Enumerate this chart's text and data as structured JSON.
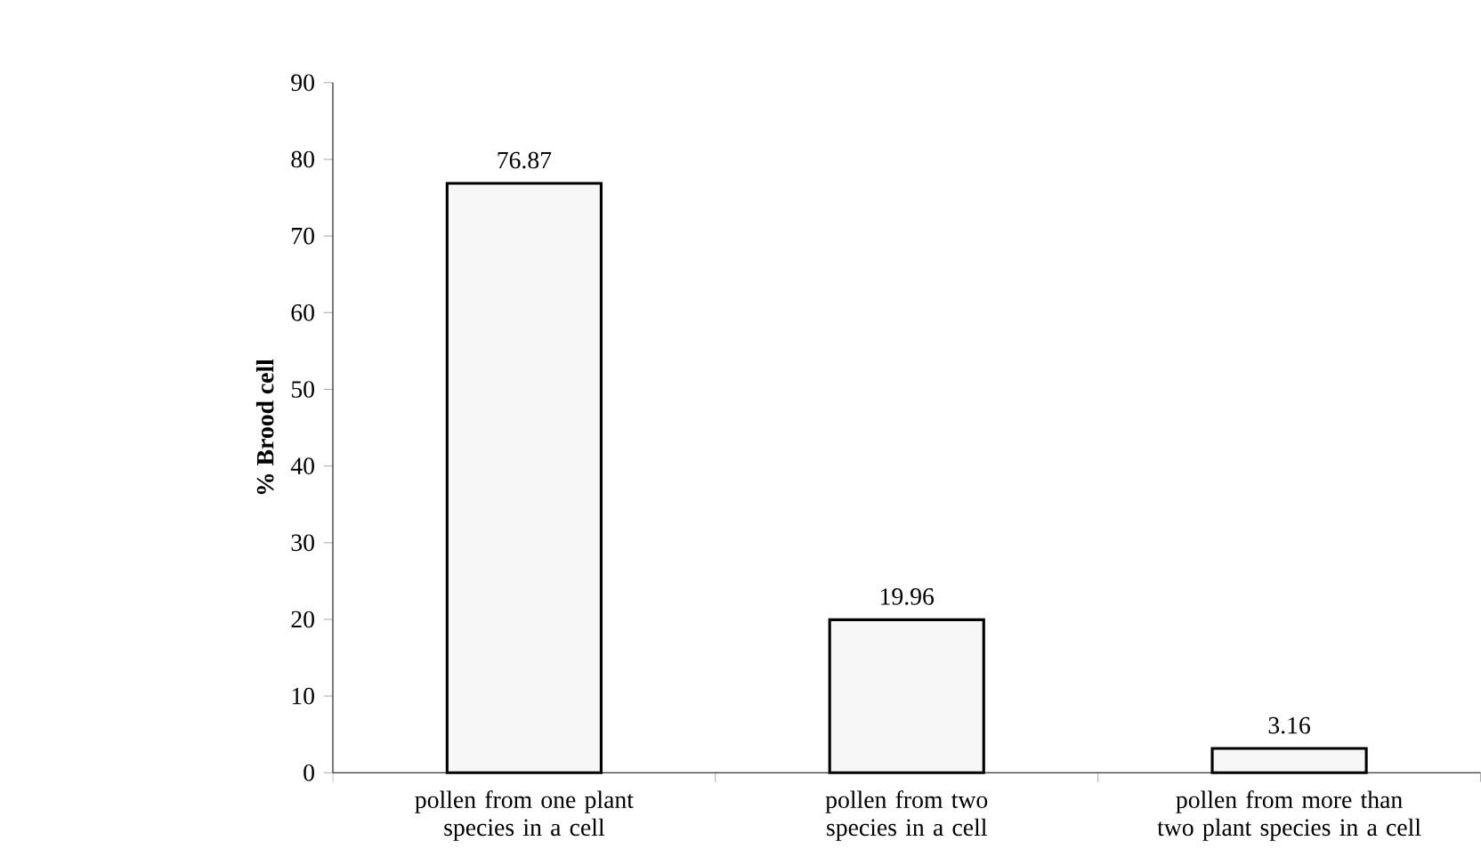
{
  "chart_data": {
    "type": "bar",
    "categories": [
      "pollen from one plant species in a cell",
      "pollen from two species in a cell",
      "pollen from more than two plant species in a cell"
    ],
    "values": [
      76.87,
      19.96,
      3.16
    ],
    "color": "#f7f7f7",
    "ylabel": "% Brood cell",
    "ylim": [
      0,
      90
    ],
    "yticks": [
      0,
      10,
      20,
      30,
      40,
      50,
      60,
      70,
      80,
      90
    ],
    "data_labels": true,
    "grid": false,
    "legend": false
  }
}
